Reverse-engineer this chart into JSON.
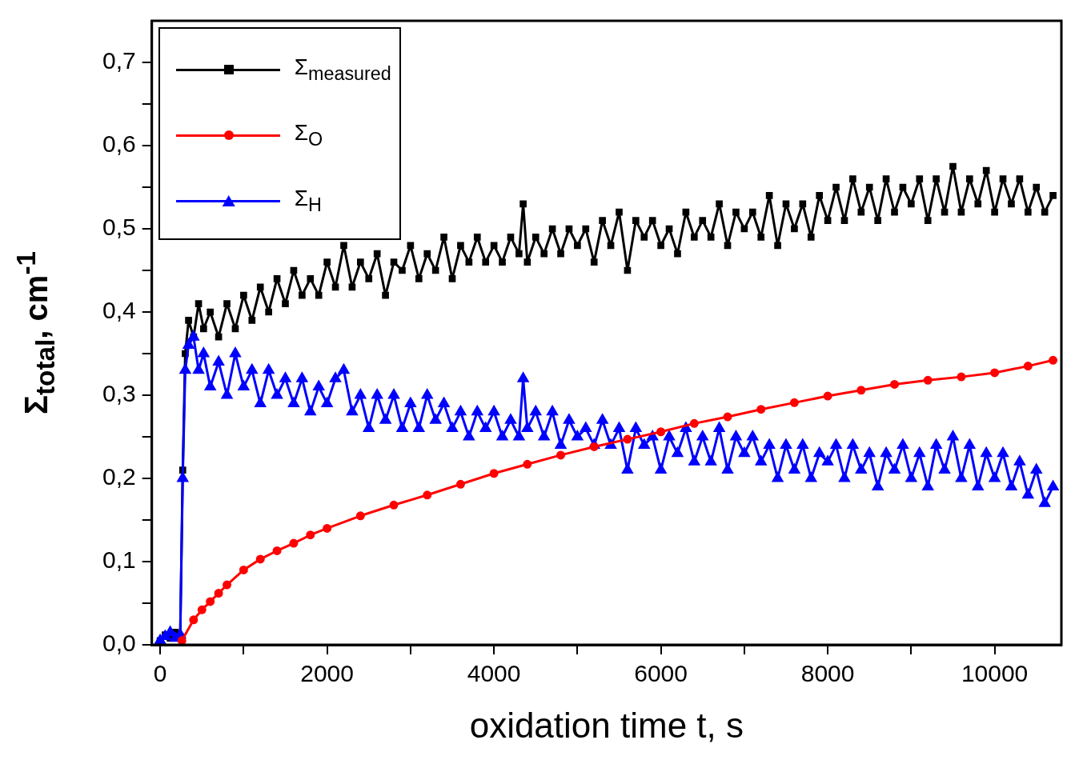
{
  "chart_data": {
    "type": "line",
    "xlabel": "oxidation time t, s",
    "ylabel": "Σ$_{total}$, cm$^{-1}$",
    "xlim": [
      -100,
      10800
    ],
    "ylim": [
      0,
      0.75
    ],
    "xticks": [
      0,
      {
        "value": 1000,
        "label": null
      },
      2000,
      {
        "value": 3000,
        "label": null
      },
      4000,
      {
        "value": 5000,
        "label": null
      },
      6000,
      {
        "value": 7000,
        "label": null
      },
      8000,
      {
        "value": 9000,
        "label": null
      },
      10000
    ],
    "yticks": [
      {
        "value": 0,
        "label": "0,0"
      },
      {
        "value": 0.05,
        "label": null
      },
      {
        "value": 0.1,
        "label": "0,1"
      },
      {
        "value": 0.15,
        "label": null
      },
      {
        "value": 0.2,
        "label": "0,2"
      },
      {
        "value": 0.25,
        "label": null
      },
      {
        "value": 0.3,
        "label": "0,3"
      },
      {
        "value": 0.35,
        "label": null
      },
      {
        "value": 0.4,
        "label": "0,4"
      },
      {
        "value": 0.45,
        "label": null
      },
      {
        "value": 0.5,
        "label": "0,5"
      },
      {
        "value": 0.55,
        "label": null
      },
      {
        "value": 0.6,
        "label": "0,6"
      },
      {
        "value": 0.65,
        "label": null
      },
      {
        "value": 0.7,
        "label": "0,7"
      }
    ],
    "grid": false,
    "legend": "top left",
    "line_style": "solid",
    "series": [
      {
        "name": "Σ$_{measured}$",
        "color": "#000000",
        "marker": "square",
        "x": [
          0,
          60,
          120,
          180,
          240,
          270,
          300,
          340,
          400,
          460,
          520,
          600,
          700,
          800,
          900,
          1000,
          1100,
          1200,
          1300,
          1400,
          1500,
          1600,
          1700,
          1800,
          1900,
          2000,
          2100,
          2200,
          2300,
          2400,
          2500,
          2600,
          2700,
          2800,
          2900,
          3000,
          3100,
          3200,
          3300,
          3400,
          3500,
          3600,
          3700,
          3800,
          3900,
          4000,
          4100,
          4200,
          4300,
          4350,
          4400,
          4500,
          4600,
          4700,
          4800,
          4900,
          5000,
          5100,
          5200,
          5300,
          5400,
          5500,
          5600,
          5700,
          5800,
          5900,
          6000,
          6100,
          6200,
          6300,
          6400,
          6500,
          6600,
          6700,
          6800,
          6900,
          7000,
          7100,
          7200,
          7300,
          7400,
          7500,
          7600,
          7700,
          7800,
          7900,
          8000,
          8100,
          8200,
          8300,
          8400,
          8500,
          8600,
          8700,
          8800,
          8900,
          9000,
          9100,
          9200,
          9300,
          9400,
          9500,
          9600,
          9700,
          9800,
          9900,
          10000,
          10100,
          10200,
          10300,
          10400,
          10500,
          10600,
          10700
        ],
        "values": [
          0.005,
          0.012,
          0.008,
          0.015,
          0.01,
          0.21,
          0.35,
          0.39,
          0.37,
          0.41,
          0.38,
          0.4,
          0.37,
          0.41,
          0.38,
          0.42,
          0.39,
          0.43,
          0.4,
          0.44,
          0.41,
          0.45,
          0.42,
          0.44,
          0.42,
          0.46,
          0.43,
          0.48,
          0.43,
          0.46,
          0.44,
          0.47,
          0.42,
          0.46,
          0.45,
          0.48,
          0.44,
          0.47,
          0.45,
          0.49,
          0.44,
          0.48,
          0.46,
          0.49,
          0.46,
          0.48,
          0.46,
          0.49,
          0.47,
          0.53,
          0.46,
          0.49,
          0.47,
          0.5,
          0.47,
          0.5,
          0.48,
          0.5,
          0.46,
          0.51,
          0.48,
          0.52,
          0.45,
          0.51,
          0.49,
          0.51,
          0.48,
          0.5,
          0.47,
          0.52,
          0.49,
          0.51,
          0.49,
          0.53,
          0.48,
          0.52,
          0.5,
          0.52,
          0.49,
          0.54,
          0.48,
          0.53,
          0.5,
          0.53,
          0.49,
          0.54,
          0.51,
          0.55,
          0.51,
          0.56,
          0.52,
          0.55,
          0.51,
          0.56,
          0.52,
          0.55,
          0.53,
          0.56,
          0.51,
          0.56,
          0.52,
          0.575,
          0.52,
          0.56,
          0.53,
          0.57,
          0.52,
          0.56,
          0.53,
          0.56,
          0.52,
          0.55,
          0.52,
          0.54
        ]
      },
      {
        "name": "Σ$_{O}$",
        "color": "#ff0000",
        "marker": "circle",
        "x": [
          260,
          400,
          500,
          600,
          700,
          800,
          1000,
          1200,
          1400,
          1600,
          1800,
          2000,
          2400,
          2800,
          3200,
          3600,
          4000,
          4400,
          4800,
          5200,
          5600,
          6000,
          6400,
          6800,
          7200,
          7600,
          8000,
          8400,
          8800,
          9200,
          9600,
          10000,
          10400,
          10700
        ],
        "values": [
          0.005,
          0.03,
          0.042,
          0.052,
          0.062,
          0.072,
          0.09,
          0.103,
          0.113,
          0.122,
          0.132,
          0.14,
          0.155,
          0.168,
          0.18,
          0.193,
          0.206,
          0.217,
          0.228,
          0.238,
          0.247,
          0.256,
          0.266,
          0.274,
          0.283,
          0.291,
          0.299,
          0.306,
          0.313,
          0.318,
          0.322,
          0.327,
          0.335,
          0.342
        ]
      },
      {
        "name": "Σ$_{H}$",
        "color": "#0000ff",
        "marker": "triangle",
        "x": [
          0,
          60,
          120,
          180,
          240,
          270,
          300,
          340,
          400,
          460,
          520,
          600,
          700,
          800,
          900,
          1000,
          1100,
          1200,
          1300,
          1400,
          1500,
          1600,
          1700,
          1800,
          1900,
          2000,
          2100,
          2200,
          2300,
          2400,
          2500,
          2600,
          2700,
          2800,
          2900,
          3000,
          3100,
          3200,
          3300,
          3400,
          3500,
          3600,
          3700,
          3800,
          3900,
          4000,
          4100,
          4200,
          4300,
          4350,
          4400,
          4500,
          4600,
          4700,
          4800,
          4900,
          5000,
          5100,
          5200,
          5300,
          5400,
          5500,
          5600,
          5700,
          5800,
          5900,
          6000,
          6100,
          6200,
          6300,
          6400,
          6500,
          6600,
          6700,
          6800,
          6900,
          7000,
          7100,
          7200,
          7300,
          7400,
          7500,
          7600,
          7700,
          7800,
          7900,
          8000,
          8100,
          8200,
          8300,
          8400,
          8500,
          8600,
          8700,
          8800,
          8900,
          9000,
          9100,
          9200,
          9300,
          9400,
          9500,
          9600,
          9700,
          9800,
          9900,
          10000,
          10100,
          10200,
          10300,
          10400,
          10500,
          10600,
          10700
        ],
        "values": [
          0.005,
          0.01,
          0.015,
          0.008,
          0.012,
          0.2,
          0.33,
          0.36,
          0.37,
          0.33,
          0.35,
          0.31,
          0.34,
          0.3,
          0.35,
          0.31,
          0.33,
          0.29,
          0.33,
          0.3,
          0.32,
          0.29,
          0.32,
          0.28,
          0.31,
          0.29,
          0.32,
          0.33,
          0.28,
          0.3,
          0.26,
          0.3,
          0.27,
          0.3,
          0.26,
          0.29,
          0.26,
          0.3,
          0.27,
          0.29,
          0.26,
          0.28,
          0.25,
          0.28,
          0.26,
          0.28,
          0.25,
          0.27,
          0.25,
          0.32,
          0.26,
          0.28,
          0.25,
          0.28,
          0.24,
          0.27,
          0.25,
          0.26,
          0.24,
          0.27,
          0.24,
          0.26,
          0.21,
          0.26,
          0.24,
          0.25,
          0.21,
          0.25,
          0.23,
          0.26,
          0.22,
          0.25,
          0.22,
          0.26,
          0.21,
          0.25,
          0.23,
          0.25,
          0.22,
          0.24,
          0.2,
          0.24,
          0.21,
          0.24,
          0.2,
          0.23,
          0.22,
          0.24,
          0.2,
          0.24,
          0.21,
          0.23,
          0.19,
          0.23,
          0.21,
          0.24,
          0.2,
          0.23,
          0.19,
          0.24,
          0.21,
          0.25,
          0.2,
          0.24,
          0.19,
          0.23,
          0.2,
          0.23,
          0.19,
          0.22,
          0.18,
          0.21,
          0.17,
          0.19
        ]
      }
    ]
  }
}
